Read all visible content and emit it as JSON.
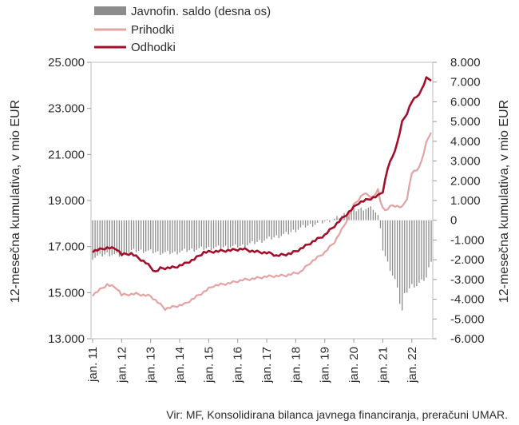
{
  "chart_data": {
    "type": "bar+line",
    "title": "",
    "source": "Vir: MF, Konsolidirana bilanca javnega financiranja, preračuni UMAR.",
    "left_axis": {
      "label": "12-mesečna kumulativa, v mio EUR",
      "range": [
        13000,
        25000
      ],
      "ticks": [
        13000,
        15000,
        17000,
        19000,
        21000,
        23000,
        25000
      ],
      "tick_labels": [
        "13.000",
        "15.000",
        "17.000",
        "19.000",
        "21.000",
        "23.000",
        "25.000"
      ]
    },
    "right_axis": {
      "label": "12-mesečna kumulativa, v mio EUR",
      "range": [
        -6000,
        8000
      ],
      "ticks": [
        -6000,
        -5000,
        -4000,
        -3000,
        -2000,
        -1000,
        0,
        1000,
        2000,
        3000,
        4000,
        5000,
        6000,
        7000,
        8000
      ],
      "tick_labels": [
        "-6.000",
        "-5.000",
        "-4.000",
        "-3.000",
        "-2.000",
        "-1.000",
        "0",
        "1.000",
        "2.000",
        "3.000",
        "4.000",
        "5.000",
        "6.000",
        "7.000",
        "8.000"
      ]
    },
    "x_axis": {
      "labels": [
        "jan. 11",
        "jan. 12",
        "jan. 13",
        "jan. 14",
        "jan. 15",
        "jan. 16",
        "jan. 17",
        "jan. 18",
        "jan. 19",
        "jan. 20",
        "jan. 21",
        "jan. 22"
      ],
      "start": "2011-01",
      "months": 134
    },
    "legend": {
      "position": "top-left",
      "items": [
        {
          "label": "Javnofin. saldo (desna os)",
          "color": "#8c8c8c",
          "kind": "bar"
        },
        {
          "label": "Prihodki",
          "color": "#e3a3a3",
          "kind": "line"
        },
        {
          "label": "Odhodki",
          "color": "#a30e2a",
          "kind": "line"
        }
      ]
    },
    "series": [
      {
        "name": "Prihodki",
        "axis": "left",
        "color": "#e3a3a3",
        "anchors": [
          [
            0,
            14900
          ],
          [
            2,
            15050
          ],
          [
            6,
            15350
          ],
          [
            10,
            15200
          ],
          [
            12,
            14900
          ],
          [
            18,
            14950
          ],
          [
            24,
            14850
          ],
          [
            30,
            14300
          ],
          [
            38,
            14500
          ],
          [
            44,
            14900
          ],
          [
            50,
            15300
          ],
          [
            56,
            15400
          ],
          [
            62,
            15550
          ],
          [
            66,
            15600
          ],
          [
            72,
            15700
          ],
          [
            80,
            15750
          ],
          [
            86,
            15900
          ],
          [
            90,
            16300
          ],
          [
            96,
            16750
          ],
          [
            100,
            17200
          ],
          [
            104,
            17900
          ],
          [
            108,
            18800
          ],
          [
            112,
            19300
          ],
          [
            116,
            19150
          ],
          [
            118,
            19450
          ],
          [
            119,
            18950
          ],
          [
            121,
            18550
          ],
          [
            124,
            18800
          ],
          [
            128,
            18700
          ],
          [
            130,
            19100
          ],
          [
            132,
            20200
          ],
          [
            134,
            20300
          ],
          [
            136,
            20700
          ],
          [
            138,
            21500
          ],
          [
            140,
            22000
          ]
        ],
        "values_by_year_jan": [
          14900,
          14900,
          14850,
          14450,
          15350,
          15700,
          15800,
          16400,
          17700,
          19000,
          18750,
          21000
        ]
      },
      {
        "name": "Odhodki",
        "axis": "left",
        "color": "#a30e2a",
        "anchors": [
          [
            0,
            16800
          ],
          [
            6,
            16950
          ],
          [
            10,
            16900
          ],
          [
            12,
            16650
          ],
          [
            16,
            16700
          ],
          [
            22,
            16300
          ],
          [
            26,
            15900
          ],
          [
            28,
            16050
          ],
          [
            34,
            16100
          ],
          [
            38,
            16250
          ],
          [
            42,
            16450
          ],
          [
            46,
            16750
          ],
          [
            52,
            16800
          ],
          [
            58,
            16850
          ],
          [
            62,
            16900
          ],
          [
            66,
            16800
          ],
          [
            70,
            16750
          ],
          [
            74,
            16700
          ],
          [
            76,
            16600
          ],
          [
            82,
            16700
          ],
          [
            86,
            16900
          ],
          [
            90,
            17150
          ],
          [
            96,
            17500
          ],
          [
            100,
            17900
          ],
          [
            104,
            18300
          ],
          [
            110,
            18900
          ],
          [
            114,
            19050
          ],
          [
            118,
            19200
          ],
          [
            120,
            19400
          ],
          [
            122,
            20400
          ],
          [
            124,
            20900
          ],
          [
            126,
            21500
          ],
          [
            128,
            22400
          ],
          [
            130,
            22800
          ],
          [
            132,
            23300
          ],
          [
            134,
            23500
          ],
          [
            136,
            23800
          ],
          [
            138,
            24300
          ],
          [
            140,
            24250
          ]
        ],
        "values_by_year_jan": [
          16800,
          16600,
          16000,
          16250,
          16800,
          16900,
          16700,
          17100,
          18300,
          19200,
          21400,
          24200
        ]
      },
      {
        "name": "Javnofin. saldo (desna os)",
        "axis": "right",
        "type": "bar",
        "color": "#8c8c8c",
        "anchors": [
          [
            0,
            -1900
          ],
          [
            6,
            -1700
          ],
          [
            12,
            -1800
          ],
          [
            16,
            -1550
          ],
          [
            22,
            -1550
          ],
          [
            28,
            -1650
          ],
          [
            34,
            -1650
          ],
          [
            38,
            -1550
          ],
          [
            44,
            -1450
          ],
          [
            50,
            -1400
          ],
          [
            56,
            -1350
          ],
          [
            62,
            -1300
          ],
          [
            68,
            -1100
          ],
          [
            74,
            -900
          ],
          [
            80,
            -700
          ],
          [
            84,
            -500
          ],
          [
            88,
            -300
          ],
          [
            92,
            -200
          ],
          [
            96,
            -50
          ],
          [
            100,
            50
          ],
          [
            104,
            300
          ],
          [
            108,
            500
          ],
          [
            112,
            600
          ],
          [
            116,
            600
          ],
          [
            118,
            200
          ],
          [
            119,
            -300
          ],
          [
            120,
            -1500
          ],
          [
            122,
            -2200
          ],
          [
            124,
            -2800
          ],
          [
            126,
            -3300
          ],
          [
            127,
            -4200
          ],
          [
            128,
            -4600
          ],
          [
            129,
            -3800
          ],
          [
            130,
            -3600
          ],
          [
            132,
            -3300
          ],
          [
            134,
            -3300
          ],
          [
            136,
            -3100
          ],
          [
            138,
            -2900
          ],
          [
            140,
            -2000
          ]
        ]
      }
    ],
    "grid": false
  }
}
